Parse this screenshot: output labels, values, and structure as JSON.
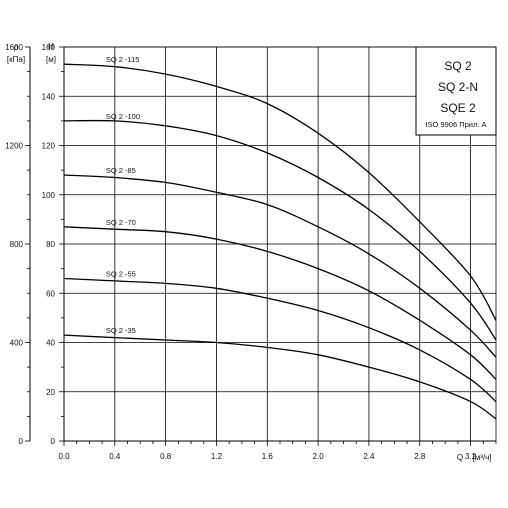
{
  "chart_data": {
    "type": "line",
    "title_lines": [
      "SQ 2",
      "SQ 2-N",
      "SQE 2"
    ],
    "note": "ISO 9906 Прил. A",
    "x_axis": {
      "symbol": "Q",
      "unit": "[м³/ч]",
      "range": [
        0,
        3.4
      ],
      "ticks": [
        0.0,
        0.4,
        0.8,
        1.2,
        1.6,
        2.0,
        2.4,
        2.8,
        3.2
      ],
      "tick_labels": [
        "0.0",
        "0.4",
        "0.8",
        "1.2",
        "1.6",
        "2.0",
        "2.4",
        "2.8",
        "3.2"
      ]
    },
    "y_axis_head": {
      "symbol": "H",
      "unit": "[м]",
      "range": [
        0,
        160
      ],
      "ticks": [
        0,
        20,
        40,
        60,
        80,
        100,
        120,
        140,
        160
      ],
      "tick_labels": [
        "0",
        "20",
        "40",
        "60",
        "80",
        "100",
        "120",
        "140",
        "160"
      ]
    },
    "y_axis_pressure": {
      "symbol": "p",
      "unit": "[кПа]",
      "range": [
        0,
        1600
      ],
      "ticks": [
        0,
        400,
        800,
        1200,
        1600
      ],
      "tick_labels": [
        "0",
        "400",
        "800",
        "1200",
        "1600"
      ]
    },
    "grid": true,
    "series": [
      {
        "name": "SQ 2 -115",
        "x": [
          0,
          0.4,
          0.8,
          1.2,
          1.6,
          2.0,
          2.4,
          2.8,
          3.2,
          3.4
        ],
        "y": [
          153,
          152,
          149,
          144,
          137,
          125,
          109,
          89,
          67,
          49
        ]
      },
      {
        "name": "SQ 2 -100",
        "x": [
          0,
          0.4,
          0.8,
          1.2,
          1.6,
          2.0,
          2.4,
          2.8,
          3.2,
          3.4
        ],
        "y": [
          130,
          130,
          128,
          124,
          117,
          107,
          94,
          77,
          56,
          41
        ]
      },
      {
        "name": "SQ 2 -85",
        "x": [
          0,
          0.4,
          0.8,
          1.2,
          1.6,
          2.0,
          2.4,
          2.8,
          3.2,
          3.4
        ],
        "y": [
          108,
          107,
          105,
          101,
          96,
          87,
          76,
          62,
          45,
          34
        ]
      },
      {
        "name": "SQ 2 -70",
        "x": [
          0,
          0.4,
          0.8,
          1.2,
          1.6,
          2.0,
          2.4,
          2.8,
          3.2,
          3.4
        ],
        "y": [
          87,
          86,
          85,
          82,
          77,
          70,
          61,
          49,
          35,
          25
        ]
      },
      {
        "name": "SQ 2 -55",
        "x": [
          0,
          0.4,
          0.8,
          1.2,
          1.6,
          2.0,
          2.4,
          2.8,
          3.2,
          3.4
        ],
        "y": [
          66,
          65,
          64,
          62,
          58,
          53,
          46,
          37,
          25,
          16
        ]
      },
      {
        "name": "SQ 2 -35",
        "x": [
          0,
          0.4,
          0.8,
          1.2,
          1.6,
          2.0,
          2.4,
          2.8,
          3.2,
          3.4
        ],
        "y": [
          43,
          42,
          41,
          40,
          38,
          35,
          30,
          24,
          16,
          9
        ]
      }
    ]
  }
}
